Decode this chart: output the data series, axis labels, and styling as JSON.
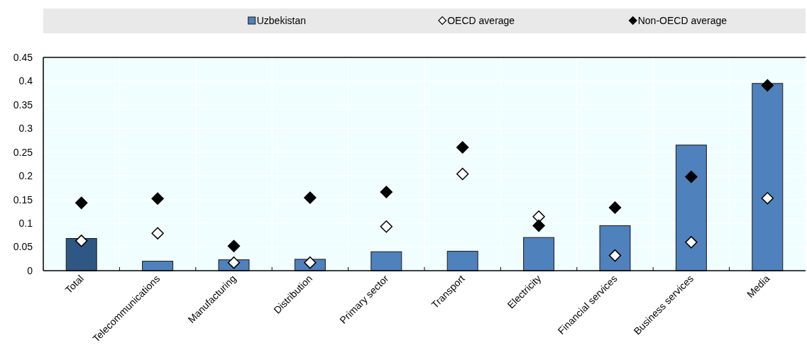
{
  "chart_data": {
    "type": "bar",
    "categories": [
      "Total",
      "Telecommunications",
      "Manufacturing",
      "Distribution",
      "Primary sector",
      "Transport",
      "Electricity",
      "Financial services",
      "Business services",
      "Media"
    ],
    "series": [
      {
        "name": "Uzbekistan",
        "color": "#4f81bd",
        "colors": [
          "#2f5783",
          "#4f81bd",
          "#4f81bd",
          "#4f81bd",
          "#4f81bd",
          "#4f81bd",
          "#4f81bd",
          "#4f81bd",
          "#4f81bd",
          "#4f81bd"
        ],
        "values": [
          0.068,
          0.02,
          0.023,
          0.024,
          0.04,
          0.041,
          0.07,
          0.095,
          0.265,
          0.395
        ]
      },
      {
        "name": "OECD average",
        "type": "scatter",
        "color": "#ffffff",
        "values": [
          0.063,
          0.079,
          0.017,
          0.017,
          0.093,
          0.204,
          0.114,
          0.032,
          0.06,
          0.153
        ]
      },
      {
        "name": "Non-OECD average",
        "type": "scatter",
        "color": "#000000",
        "values": [
          0.143,
          0.152,
          0.052,
          0.154,
          0.166,
          0.26,
          0.095,
          0.133,
          0.198,
          0.391
        ]
      }
    ],
    "ylim": [
      0,
      0.45
    ],
    "yticks": [
      0,
      0.05,
      0.1,
      0.15,
      0.2,
      0.25,
      0.3,
      0.35,
      0.4,
      0.45
    ],
    "grid": true,
    "legend": "top",
    "marker": "diamond"
  }
}
